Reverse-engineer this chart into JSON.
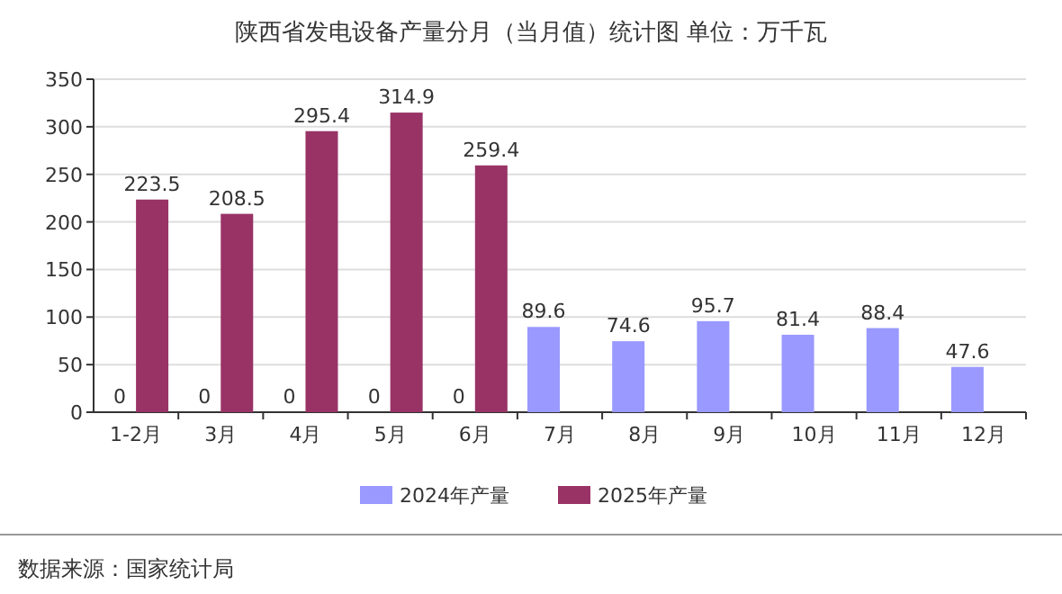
{
  "chart_data": {
    "type": "bar",
    "title": "陕西省发电设备产量分月（当月值）统计图 单位：万千瓦",
    "categories": [
      "1-2月",
      "3月",
      "4月",
      "5月",
      "6月",
      "7月",
      "8月",
      "9月",
      "10月",
      "11月",
      "12月"
    ],
    "series": [
      {
        "name": "2024年产量",
        "color": "#9999ff",
        "values": [
          0,
          0,
          0,
          0,
          0,
          89.6,
          74.6,
          95.7,
          81.4,
          88.4,
          47.6
        ]
      },
      {
        "name": "2025年产量",
        "color": "#993366",
        "values": [
          223.5,
          208.5,
          295.4,
          314.9,
          259.4,
          null,
          null,
          null,
          null,
          null,
          null
        ]
      }
    ],
    "ylim": [
      0,
      350
    ],
    "yticks": [
      0,
      50,
      100,
      150,
      200,
      250,
      300,
      350
    ],
    "grid": "y",
    "legend": "bottom",
    "data_labels": true,
    "annotations": [
      "数据来源：国家统计局"
    ]
  }
}
